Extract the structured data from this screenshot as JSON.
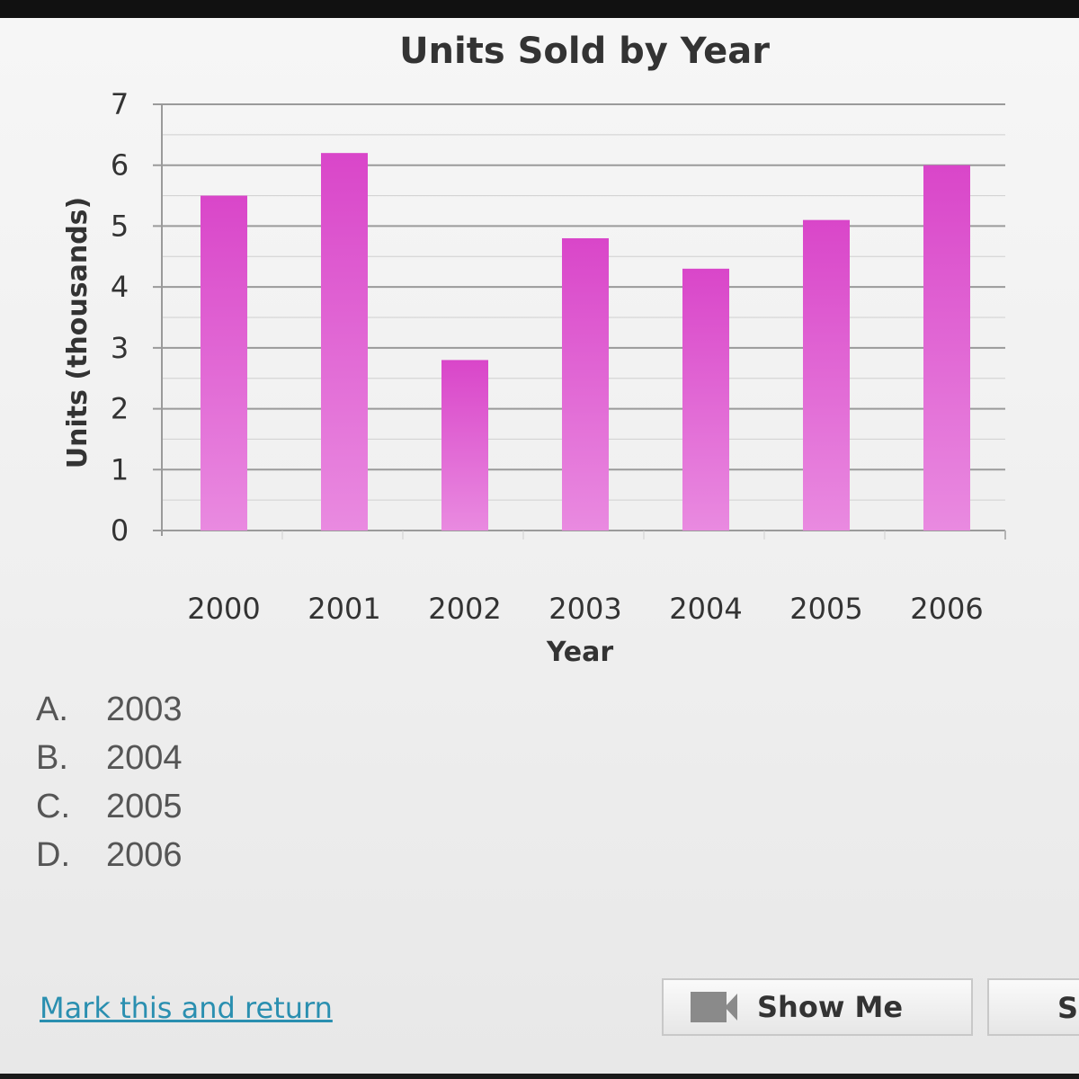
{
  "chart_data": {
    "type": "bar",
    "title": "Units Sold by Year",
    "xlabel": "Year",
    "ylabel": "Units (thousands)",
    "categories": [
      "2000",
      "2001",
      "2002",
      "2003",
      "2004",
      "2005",
      "2006"
    ],
    "values": [
      5.5,
      6.2,
      2.8,
      4.8,
      4.3,
      5.1,
      6.0
    ],
    "ylim": [
      0,
      7
    ],
    "yticks": [
      "0",
      "1",
      "2",
      "3",
      "4",
      "5",
      "6",
      "7"
    ],
    "grid": true,
    "bar_color": "#d946c9"
  },
  "answers": [
    {
      "letter": "A.",
      "value": "2003"
    },
    {
      "letter": "B.",
      "value": "2004"
    },
    {
      "letter": "C.",
      "value": "2005"
    },
    {
      "letter": "D.",
      "value": "2006"
    }
  ],
  "footer": {
    "mark_link": "Mark this and return",
    "show_me_label": "Show Me",
    "next_label": "Sa"
  }
}
